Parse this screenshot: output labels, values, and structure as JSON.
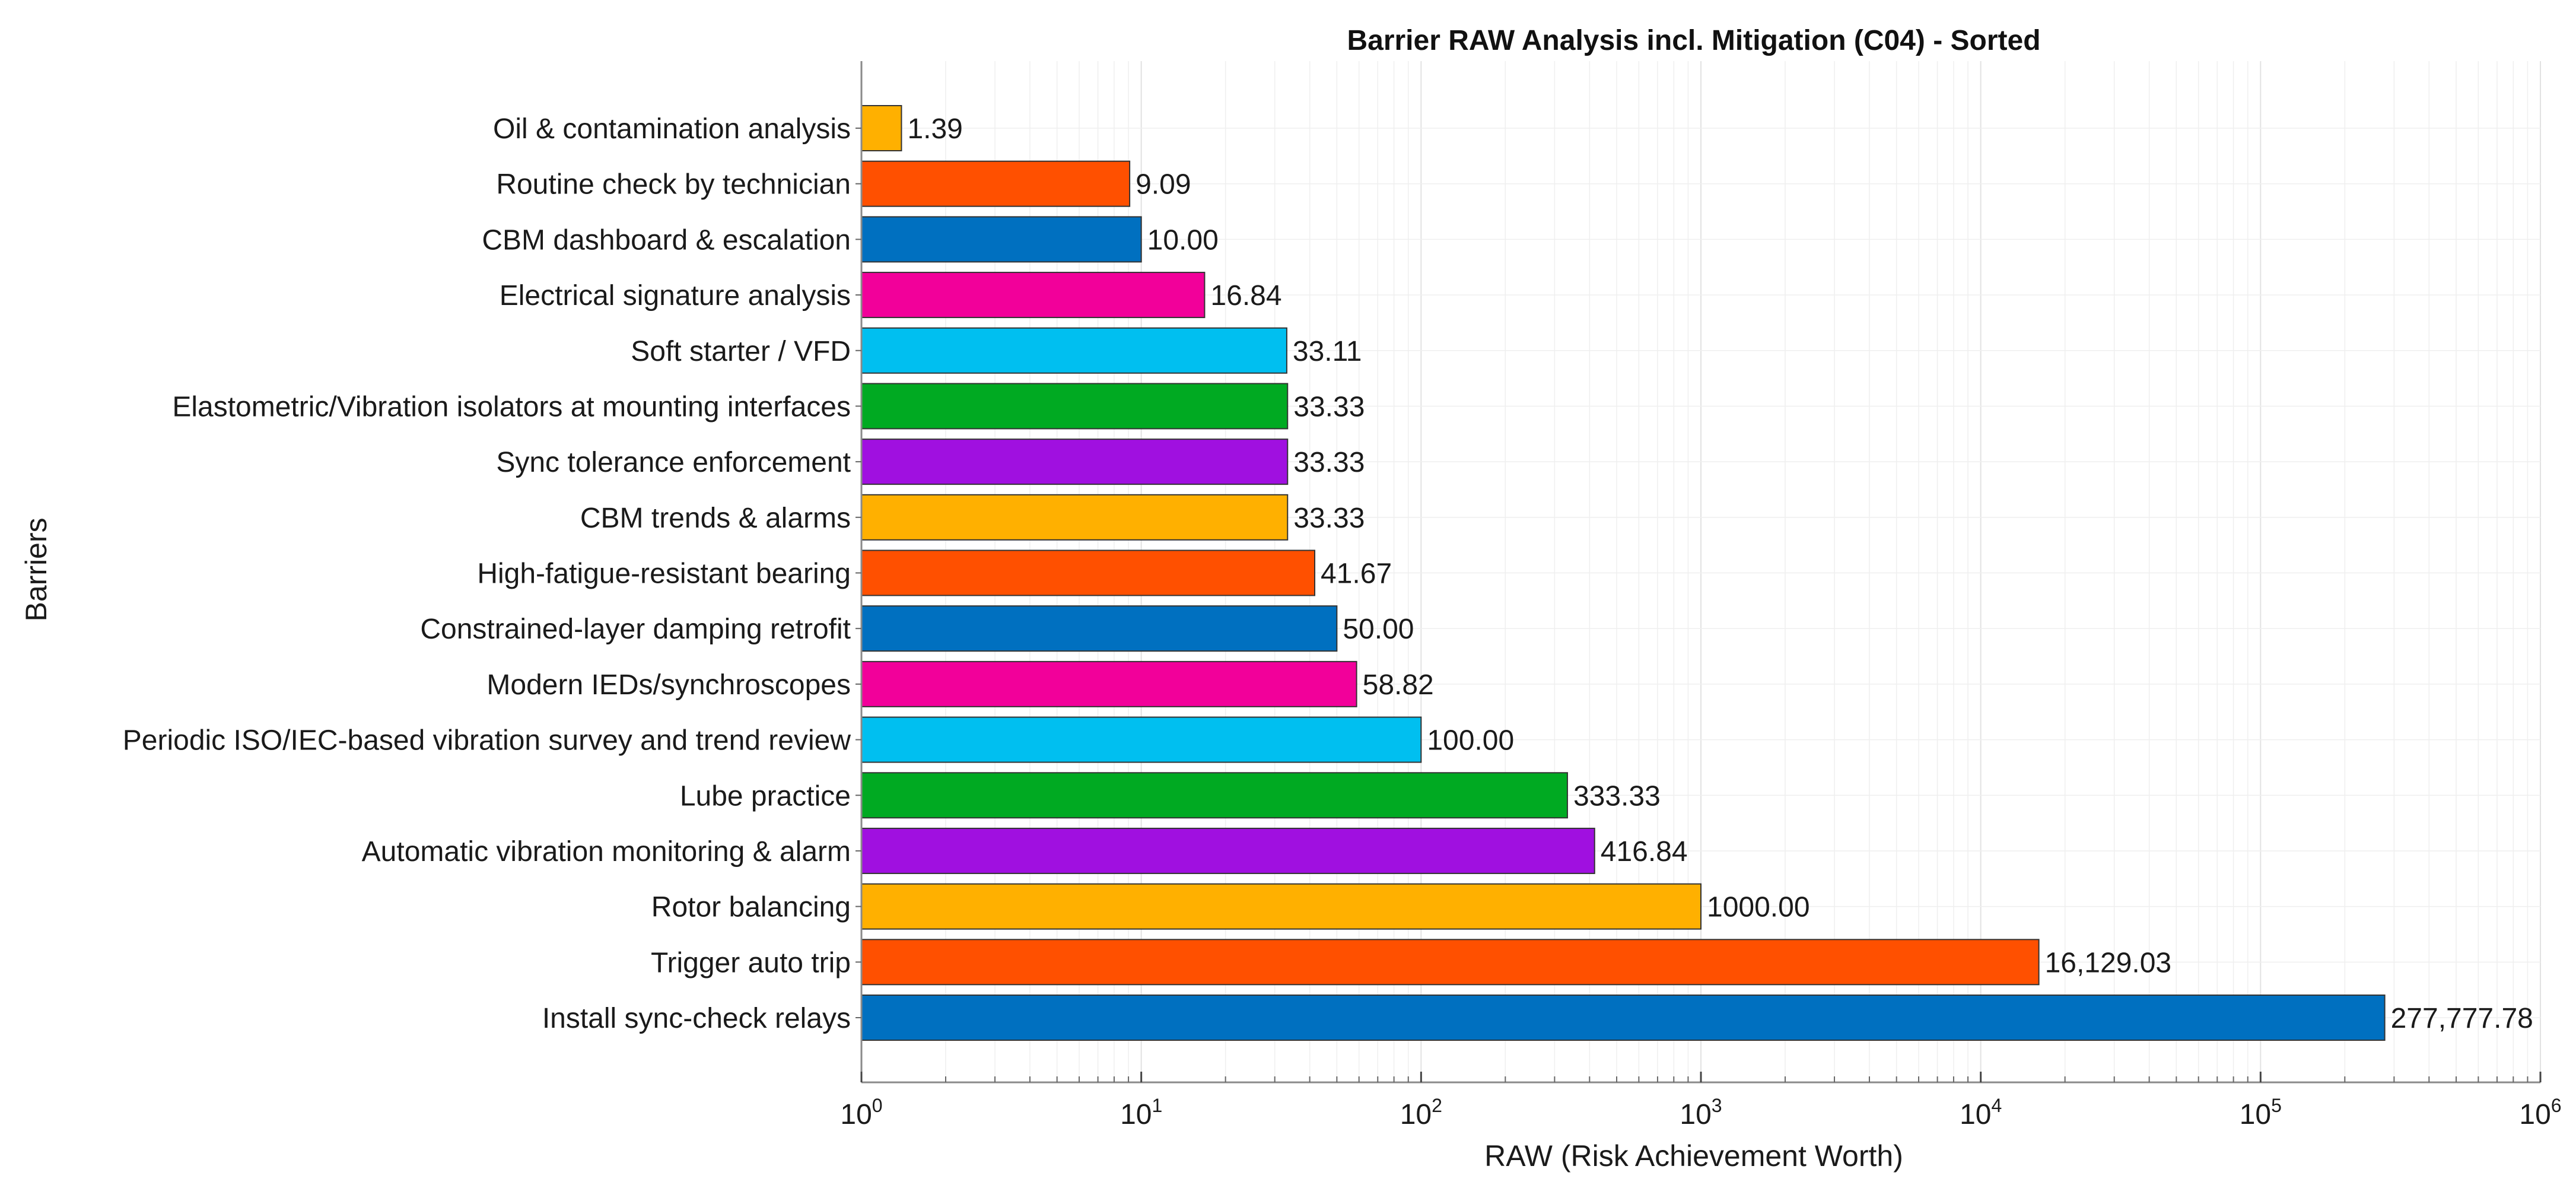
{
  "chart_data": {
    "type": "bar",
    "orientation": "horizontal",
    "title": "Barrier RAW Analysis incl. Mitigation (C04) - Sorted",
    "xlabel": "RAW (Risk Achievement Worth)",
    "ylabel": "Barriers",
    "xscale": "log",
    "xlim": [
      1,
      1000000
    ],
    "grid": true,
    "x_ticks": [
      {
        "base": "10",
        "exp": "0"
      },
      {
        "base": "10",
        "exp": "1"
      },
      {
        "base": "10",
        "exp": "2"
      },
      {
        "base": "10",
        "exp": "3"
      },
      {
        "base": "10",
        "exp": "4"
      },
      {
        "base": "10",
        "exp": "5"
      },
      {
        "base": "10",
        "exp": "6"
      }
    ],
    "categories": [
      "Oil & contamination analysis",
      "Routine check by technician",
      "CBM dashboard & escalation",
      "Electrical signature analysis",
      "Soft starter / VFD",
      "Elastometric/Vibration isolators at mounting interfaces",
      "Sync tolerance enforcement",
      "CBM trends & alarms",
      "High-fatigue-resistant bearing",
      "Constrained-layer damping retrofit",
      "Modern IEDs/synchroscopes",
      "Periodic ISO/IEC-based vibration survey and trend review",
      "Lube practice",
      "Automatic vibration monitoring & alarm",
      "Rotor balancing",
      "Trigger auto trip",
      "Install sync-check relays"
    ],
    "values": [
      1.39,
      9.09,
      10.0,
      16.84,
      33.11,
      33.33,
      33.33,
      33.33,
      41.67,
      50.0,
      58.82,
      100.0,
      333.33,
      416.84,
      1000.0,
      16129.03,
      277777.78
    ],
    "value_labels": [
      "1.39",
      "9.09",
      "10.00",
      "16.84",
      "33.11",
      "33.33",
      "33.33",
      "33.33",
      "41.67",
      "50.00",
      "58.82",
      "100.00",
      "333.33",
      "416.84",
      "1000.00",
      "16,129.03",
      "277,777.78"
    ],
    "colors": [
      "#FFB000",
      "#FF5000",
      "#0070C0",
      "#F2009A",
      "#00BFF0",
      "#00AA22",
      "#A010E0",
      "#FFB000",
      "#FF5000",
      "#0070C0",
      "#F2009A",
      "#00BFF0",
      "#00AA22",
      "#A010E0",
      "#FFB000",
      "#FF5000",
      "#0070C0"
    ]
  }
}
